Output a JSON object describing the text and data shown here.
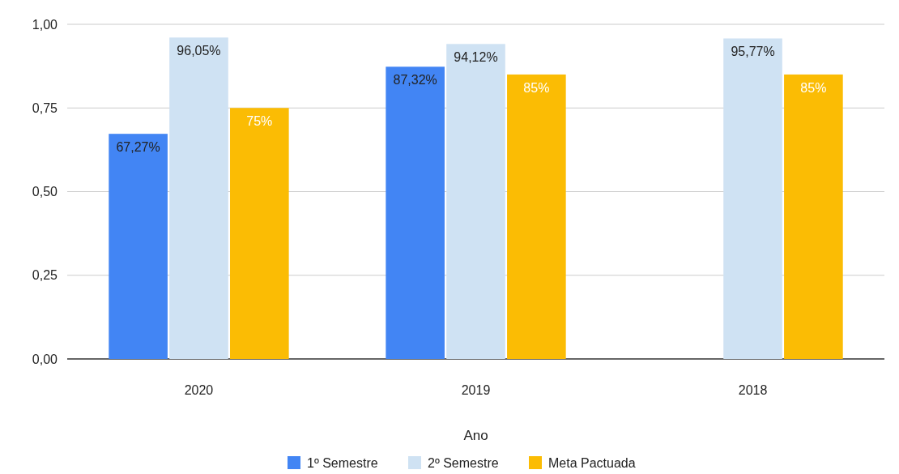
{
  "chart_data": {
    "type": "bar",
    "xlabel": "Ano",
    "categories": [
      "2020",
      "2019",
      "2018"
    ],
    "series": [
      {
        "name": "1º Semestre",
        "color": "#4285f4",
        "values": [
          0.6727,
          0.8732,
          null
        ],
        "value_labels": [
          "67,27%",
          "87,32%",
          null
        ]
      },
      {
        "name": "2º Semestre",
        "color": "#cfe2f3",
        "values": [
          0.9605,
          0.9412,
          0.9577
        ],
        "value_labels": [
          "96,05%",
          "94,12%",
          "95,77%"
        ]
      },
      {
        "name": "Meta Pactuada",
        "color": "#fbbc04",
        "values": [
          0.75,
          0.85,
          0.85
        ],
        "value_labels": [
          "75%",
          "85%",
          "85%"
        ]
      }
    ],
    "ylim": [
      0,
      1
    ],
    "yticks": [
      {
        "value": 0,
        "label": "0,00"
      },
      {
        "value": 0.25,
        "label": "0,25"
      },
      {
        "value": 0.5,
        "label": "0,50"
      },
      {
        "value": 0.75,
        "label": "0,75"
      },
      {
        "value": 1,
        "label": "1,00"
      }
    ],
    "grid": "y",
    "legend": "bottom"
  }
}
